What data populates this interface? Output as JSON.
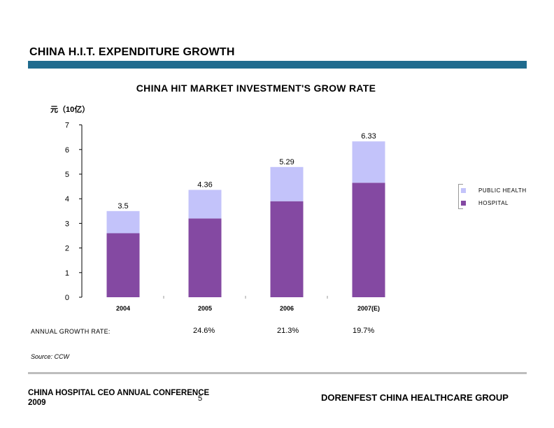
{
  "slide": {
    "title": "CHINA H.I.T. EXPENDITURE GROWTH",
    "growth_label": "ANNUAL GROWTH RATE:",
    "growth_rates": [
      "24.6%",
      "21.3%",
      "19.7%"
    ],
    "source": "Source: CCW",
    "footer_left_line1": "CHINA HOSPITAL CEO ANNUAL CONFERENCE",
    "footer_left_line2": "2009",
    "page_number": "5",
    "footer_right": "DORENFEST CHINA HEALTHCARE GROUP",
    "colors": {
      "title_bar": "#1f6b8e",
      "footer_bar": "#bdbdbd",
      "hospital": "#8449a2",
      "public_health": "#c3c3fa"
    }
  },
  "chart_data": {
    "type": "bar",
    "stacked": true,
    "title": "CHINA HIT MARKET INVESTMENT'S GROW RATE",
    "ylabel": "元（10亿）",
    "xlabel": "",
    "ylim": [
      0,
      7
    ],
    "yticks": [
      "0",
      "1",
      "2",
      "3",
      "4",
      "5",
      "6",
      "7"
    ],
    "categories": [
      "2004",
      "2005",
      "2006",
      "2007(E)"
    ],
    "series": [
      {
        "name": "HOSPITAL",
        "color": "#8449a2",
        "values": [
          2.6,
          3.2,
          3.9,
          4.65
        ]
      },
      {
        "name": "PUBLIC HEALTH",
        "color": "#c3c3fa",
        "values": [
          0.9,
          1.16,
          1.39,
          1.68
        ]
      }
    ],
    "totals": [
      "3.5",
      "4.36",
      "5.29",
      "6.33"
    ],
    "legend_position": "right",
    "legend_order": [
      "PUBLIC HEALTH",
      "HOSPITAL"
    ],
    "grid": false
  }
}
